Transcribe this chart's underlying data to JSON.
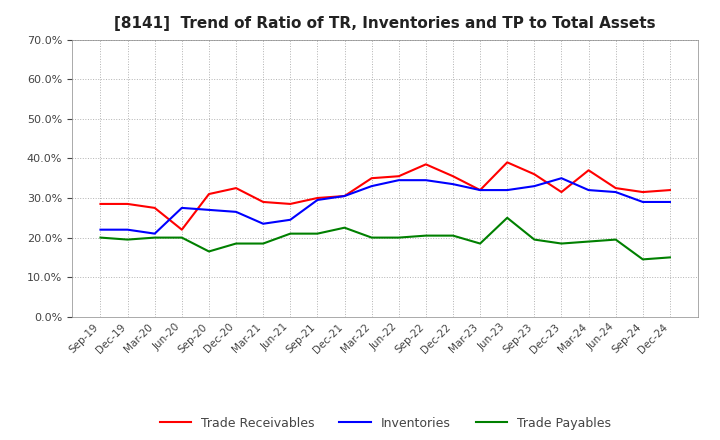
{
  "title": "[8141]  Trend of Ratio of TR, Inventories and TP to Total Assets",
  "x_labels": [
    "Sep-19",
    "Dec-19",
    "Mar-20",
    "Jun-20",
    "Sep-20",
    "Dec-20",
    "Mar-21",
    "Jun-21",
    "Sep-21",
    "Dec-21",
    "Mar-22",
    "Jun-22",
    "Sep-22",
    "Dec-22",
    "Mar-23",
    "Jun-23",
    "Sep-23",
    "Dec-23",
    "Mar-24",
    "Jun-24",
    "Sep-24",
    "Dec-24"
  ],
  "trade_receivables": [
    0.285,
    0.285,
    0.275,
    0.22,
    0.31,
    0.325,
    0.29,
    0.285,
    0.3,
    0.305,
    0.35,
    0.355,
    0.385,
    0.355,
    0.32,
    0.39,
    0.36,
    0.315,
    0.37,
    0.325,
    0.315,
    0.32
  ],
  "inventories": [
    0.22,
    0.22,
    0.21,
    0.275,
    0.27,
    0.265,
    0.235,
    0.245,
    0.295,
    0.305,
    0.33,
    0.345,
    0.345,
    0.335,
    0.32,
    0.32,
    0.33,
    0.35,
    0.32,
    0.315,
    0.29,
    0.29
  ],
  "trade_payables": [
    0.2,
    0.195,
    0.2,
    0.2,
    0.165,
    0.185,
    0.185,
    0.21,
    0.21,
    0.225,
    0.2,
    0.2,
    0.205,
    0.205,
    0.185,
    0.25,
    0.195,
    0.185,
    0.19,
    0.195,
    0.145,
    0.15
  ],
  "ylim": [
    0.0,
    0.7
  ],
  "yticks": [
    0.0,
    0.1,
    0.2,
    0.3,
    0.4,
    0.5,
    0.6,
    0.7
  ],
  "colors": {
    "trade_receivables": "#ff0000",
    "inventories": "#0000ff",
    "trade_payables": "#008000"
  },
  "legend_labels": [
    "Trade Receivables",
    "Inventories",
    "Trade Payables"
  ],
  "background_color": "#ffffff",
  "grid_color": "#aaaaaa",
  "title_fontsize": 11,
  "tick_label_color": "#444444",
  "linewidth": 1.5
}
